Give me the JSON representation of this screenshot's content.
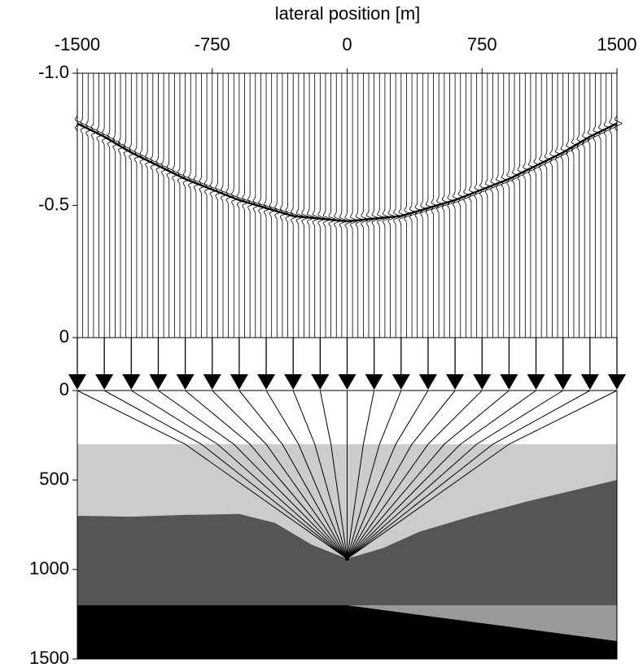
{
  "chart_data": {
    "type": "seismic-model",
    "xlabel": "lateral position [m]",
    "xlim": [
      -1500,
      1500
    ],
    "xticks": [
      -1500,
      -750,
      0,
      750,
      1500
    ],
    "tlim": [
      -1,
      0
    ],
    "tticks": [
      {
        "value": -1,
        "label": "-1.0"
      },
      -0.5,
      0
    ],
    "dlim": [
      0,
      1500
    ],
    "dticks": [
      0,
      500,
      1000,
      1500
    ],
    "offsets": [
      -1500,
      -1350,
      -1200,
      -1050,
      -900,
      -750,
      -600,
      -450,
      -300,
      -150,
      0,
      150,
      300,
      450,
      600,
      750,
      900,
      1050,
      1200,
      1350,
      1500
    ],
    "event_times": [
      -0.81,
      -0.76,
      -0.7,
      -0.65,
      -0.6,
      -0.56,
      -0.52,
      -0.49,
      -0.46,
      -0.45,
      -0.44,
      -0.45,
      -0.46,
      -0.49,
      -0.52,
      -0.56,
      -0.6,
      -0.65,
      -0.7,
      -0.76,
      -0.81
    ],
    "source": [
      0,
      940
    ],
    "layers": [
      {
        "color": "#cccccc",
        "boundary": [
          [
            -1500,
            300
          ],
          [
            1500,
            300
          ]
        ]
      },
      {
        "color": "#555555",
        "boundary": [
          [
            -1500,
            700
          ],
          [
            -1200,
            705
          ],
          [
            -900,
            695
          ],
          [
            -600,
            690
          ],
          [
            -400,
            740
          ],
          [
            -200,
            860
          ],
          [
            0,
            940
          ],
          [
            200,
            880
          ],
          [
            400,
            790
          ],
          [
            700,
            700
          ],
          [
            1000,
            620
          ],
          [
            1500,
            500
          ]
        ]
      },
      {
        "color": "#999999",
        "boundary": [
          [
            0,
            1200
          ],
          [
            1500,
            1200
          ]
        ]
      },
      {
        "color": "#000000",
        "boundary": [
          [
            -1500,
            1200
          ],
          [
            0,
            1200
          ],
          [
            1500,
            1400
          ]
        ]
      }
    ]
  }
}
